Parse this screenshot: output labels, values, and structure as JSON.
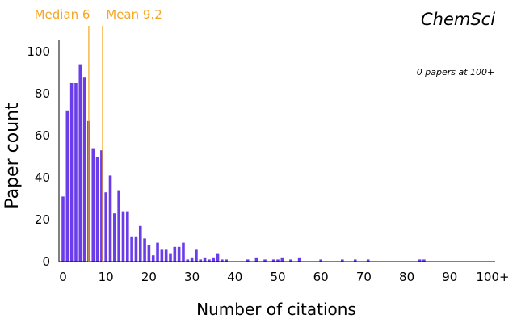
{
  "chart_data": {
    "type": "bar",
    "title": "ChemSci",
    "xlabel": "Number of citations",
    "ylabel": "Paper count",
    "xlim": [
      0,
      100
    ],
    "ylim": [
      0,
      105
    ],
    "xticks": [
      "0",
      "10",
      "20",
      "30",
      "40",
      "50",
      "60",
      "70",
      "80",
      "90",
      "100+"
    ],
    "xtick_values": [
      0,
      10,
      20,
      30,
      40,
      50,
      60,
      70,
      80,
      90,
      100
    ],
    "yticks": [
      0,
      20,
      40,
      60,
      80,
      100
    ],
    "bar_color": "#6a3de8",
    "annotation_color": "#f5a623",
    "bars": [
      {
        "x": 0,
        "y": 31
      },
      {
        "x": 1,
        "y": 72
      },
      {
        "x": 2,
        "y": 85
      },
      {
        "x": 3,
        "y": 85
      },
      {
        "x": 4,
        "y": 94
      },
      {
        "x": 5,
        "y": 88
      },
      {
        "x": 6,
        "y": 67
      },
      {
        "x": 7,
        "y": 54
      },
      {
        "x": 8,
        "y": 50
      },
      {
        "x": 9,
        "y": 53
      },
      {
        "x": 10,
        "y": 33
      },
      {
        "x": 11,
        "y": 41
      },
      {
        "x": 12,
        "y": 23
      },
      {
        "x": 13,
        "y": 34
      },
      {
        "x": 14,
        "y": 24
      },
      {
        "x": 15,
        "y": 24
      },
      {
        "x": 16,
        "y": 12
      },
      {
        "x": 17,
        "y": 12
      },
      {
        "x": 18,
        "y": 17
      },
      {
        "x": 19,
        "y": 11
      },
      {
        "x": 20,
        "y": 8
      },
      {
        "x": 21,
        "y": 3
      },
      {
        "x": 22,
        "y": 9
      },
      {
        "x": 23,
        "y": 6
      },
      {
        "x": 24,
        "y": 6
      },
      {
        "x": 25,
        "y": 4
      },
      {
        "x": 26,
        "y": 7
      },
      {
        "x": 27,
        "y": 7
      },
      {
        "x": 28,
        "y": 9
      },
      {
        "x": 29,
        "y": 1
      },
      {
        "x": 30,
        "y": 2
      },
      {
        "x": 31,
        "y": 6
      },
      {
        "x": 32,
        "y": 1
      },
      {
        "x": 33,
        "y": 2
      },
      {
        "x": 34,
        "y": 1
      },
      {
        "x": 35,
        "y": 2
      },
      {
        "x": 36,
        "y": 4
      },
      {
        "x": 37,
        "y": 1
      },
      {
        "x": 38,
        "y": 1
      },
      {
        "x": 43,
        "y": 1
      },
      {
        "x": 45,
        "y": 2
      },
      {
        "x": 47,
        "y": 1
      },
      {
        "x": 49,
        "y": 1
      },
      {
        "x": 50,
        "y": 1
      },
      {
        "x": 51,
        "y": 2
      },
      {
        "x": 53,
        "y": 1
      },
      {
        "x": 55,
        "y": 2
      },
      {
        "x": 60,
        "y": 1
      },
      {
        "x": 65,
        "y": 1
      },
      {
        "x": 68,
        "y": 1
      },
      {
        "x": 71,
        "y": 1
      },
      {
        "x": 83,
        "y": 1
      },
      {
        "x": 84,
        "y": 1
      }
    ],
    "annotations": {
      "median": {
        "label": "Median 6",
        "value": 6
      },
      "mean": {
        "label": "Mean 9.2",
        "value": 9.2
      },
      "overflow_note": "0 papers at 100+"
    },
    "grid": false,
    "legend": "none"
  }
}
